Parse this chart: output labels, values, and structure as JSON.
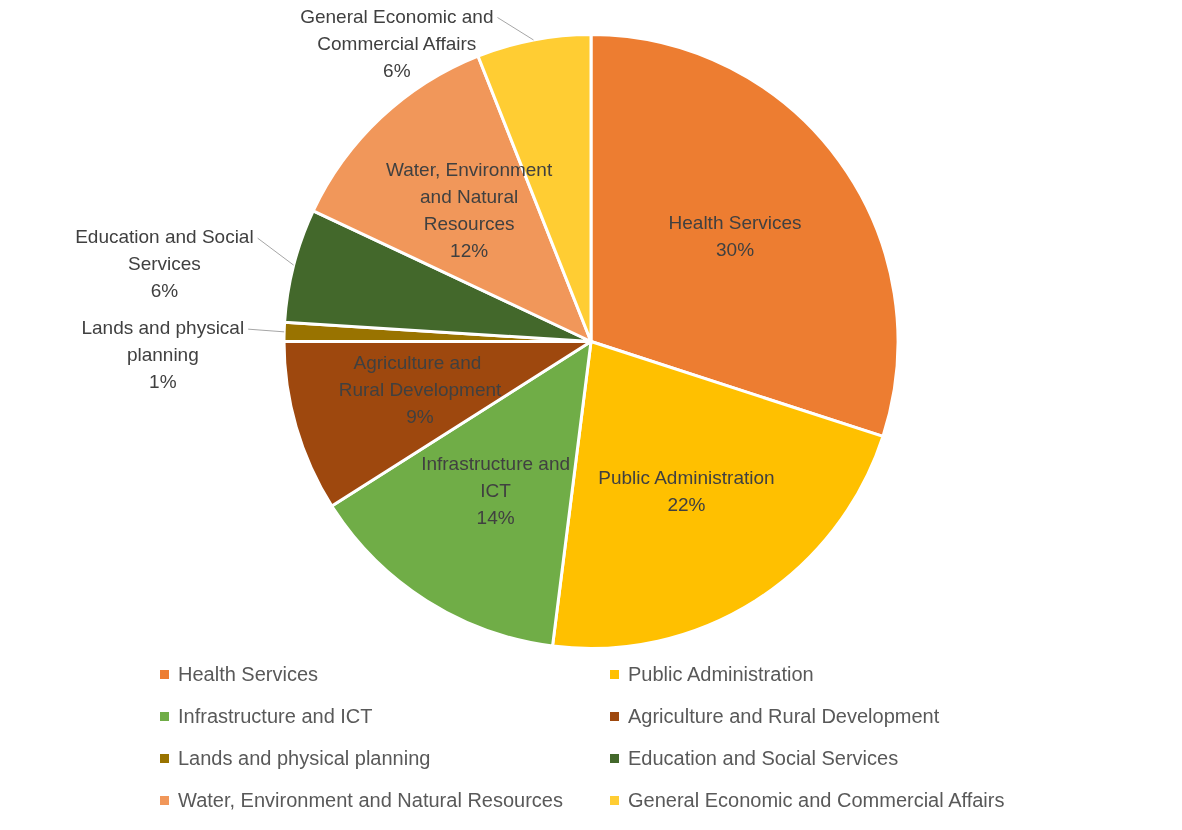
{
  "chart_data": {
    "type": "pie",
    "categories": [
      "Health Services",
      "Public Administration",
      "Infrastructure and ICT",
      "Agriculture and  Rural Development",
      "Lands and physical planning",
      "Education and Social Services",
      "Water, Environment and Natural Resources",
      "General Economic and Commercial Affairs"
    ],
    "values": [
      30,
      22,
      14,
      9,
      1,
      6,
      12,
      6
    ],
    "value_labels": [
      "30%",
      "22%",
      "14%",
      "9%",
      "1%",
      "6%",
      "12%",
      "6%"
    ],
    "colors": [
      "#ed7d31",
      "#ffc000",
      "#70ad47",
      "#9e480e",
      "#997300",
      "#43682b",
      "#f1975a",
      "#ffcd33"
    ],
    "data_labels": true,
    "legend": "bottom"
  }
}
